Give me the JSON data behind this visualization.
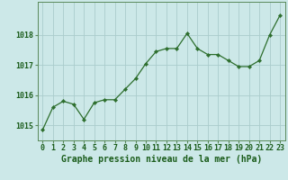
{
  "x": [
    0,
    1,
    2,
    3,
    4,
    5,
    6,
    7,
    8,
    9,
    10,
    11,
    12,
    13,
    14,
    15,
    16,
    17,
    18,
    19,
    20,
    21,
    22,
    23
  ],
  "y": [
    1014.85,
    1015.6,
    1015.8,
    1015.7,
    1015.2,
    1015.75,
    1015.85,
    1015.85,
    1016.2,
    1016.55,
    1017.05,
    1017.45,
    1017.55,
    1017.55,
    1018.05,
    1017.55,
    1017.35,
    1017.35,
    1017.15,
    1016.95,
    1016.95,
    1017.15,
    1018.0,
    1018.65
  ],
  "line_color": "#2d6e2d",
  "marker_color": "#2d6e2d",
  "bg_color": "#cce8e8",
  "grid_color": "#aacccc",
  "xlabel": "Graphe pression niveau de la mer (hPa)",
  "xlabel_color": "#1a5c1a",
  "xlabel_fontsize": 7,
  "tick_color": "#1a5c1a",
  "tick_fontsize": 6,
  "yticks": [
    1015,
    1016,
    1017,
    1018
  ],
  "ylim": [
    1014.5,
    1019.1
  ],
  "xlim": [
    -0.5,
    23.5
  ],
  "axis_color": "#5a8a5a"
}
